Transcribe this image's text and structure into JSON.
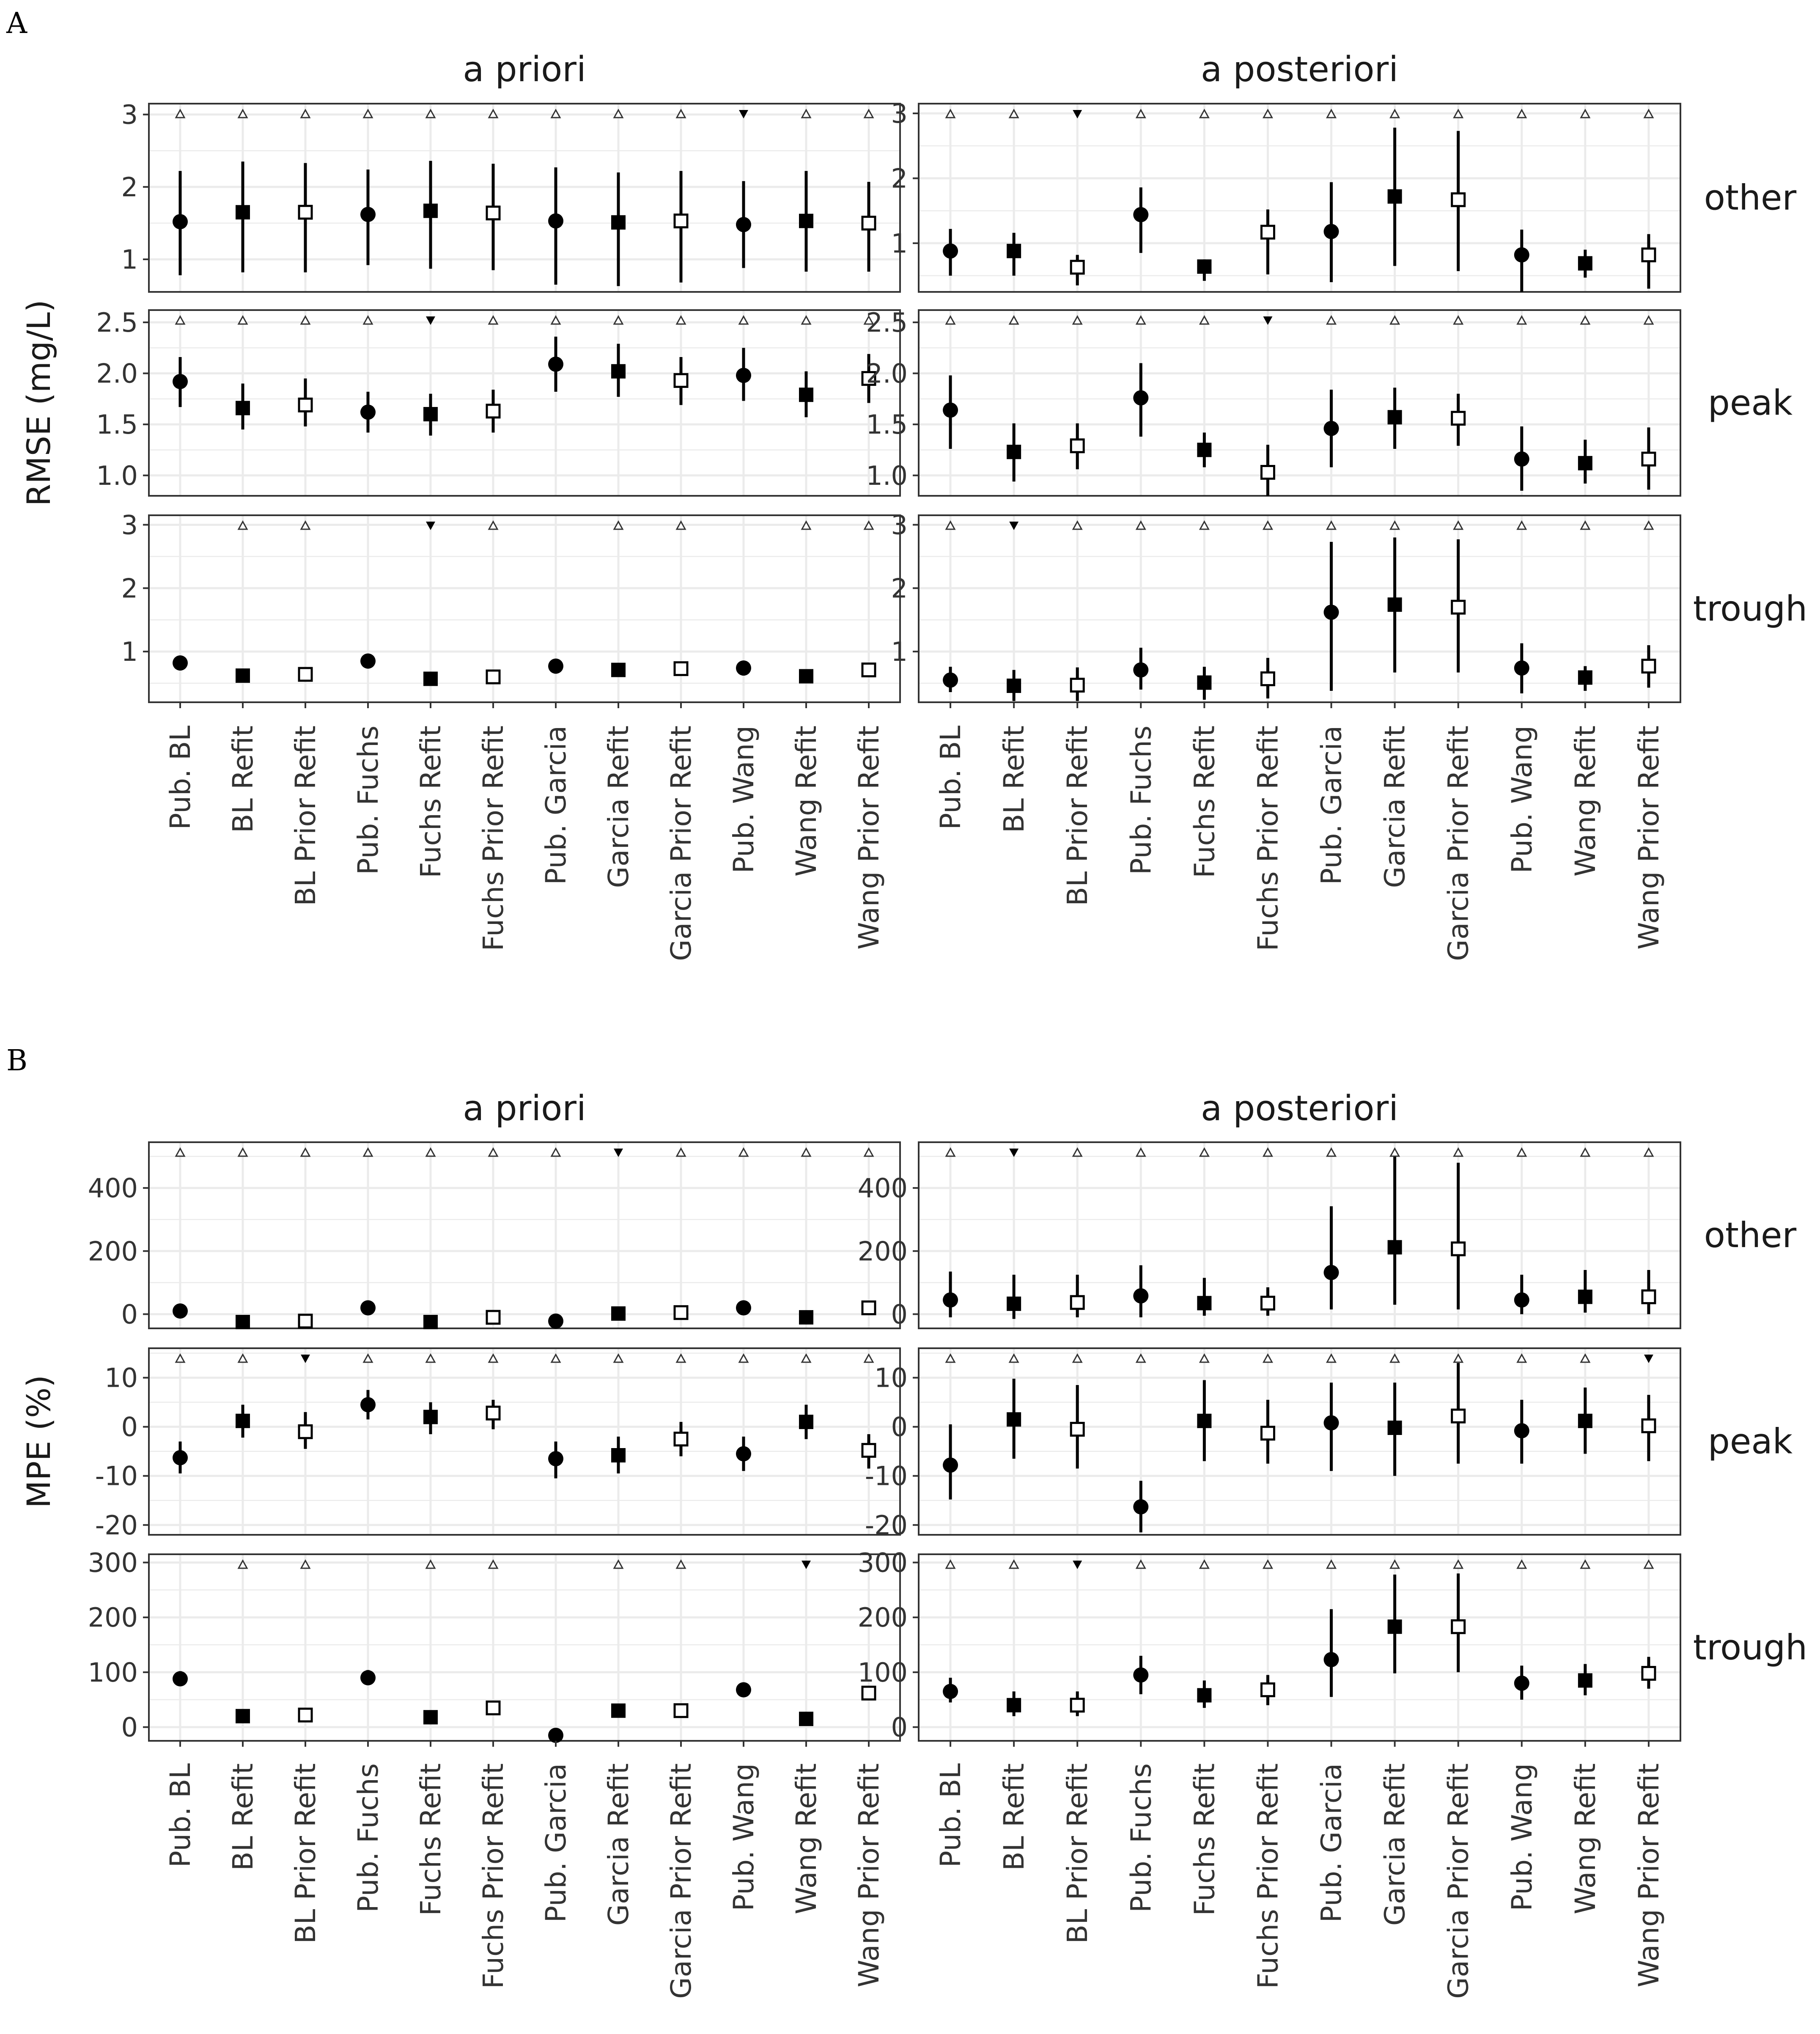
{
  "panel_labels": [
    "A",
    "B"
  ],
  "chart_data": [
    {
      "type": "scatter",
      "panel": "A",
      "ylabel": "RMSE (mg/L)",
      "columns": [
        "a priori",
        "a posteriori"
      ],
      "rows": [
        "other",
        "peak",
        "trough"
      ],
      "categories": [
        "Pub. BL",
        "BL Refit",
        "BL Prior Refit",
        "Pub. Fuchs",
        "Fuchs Refit",
        "Fuchs Prior Refit",
        "Pub. Garcia",
        "Garcia Refit",
        "Garcia Prior Refit",
        "Pub. Wang",
        "Wang Refit",
        "Wang Prior Refit"
      ],
      "marker_shapes": [
        "circle",
        "square",
        "open-square",
        "circle",
        "square",
        "open-square",
        "circle",
        "square",
        "open-square",
        "circle",
        "square",
        "open-square"
      ],
      "facets": [
        {
          "row": "other",
          "column": "a priori",
          "ylim": [
            0.55,
            3.15
          ],
          "yticks": [
            1,
            2,
            3
          ],
          "values": [
            1.52,
            1.65,
            1.65,
            1.62,
            1.67,
            1.64,
            1.53,
            1.51,
            1.53,
            1.48,
            1.53,
            1.5
          ],
          "lower": [
            0.78,
            0.82,
            0.82,
            0.92,
            0.87,
            0.85,
            0.65,
            0.63,
            0.68,
            0.88,
            0.83,
            0.83
          ],
          "upper": [
            2.22,
            2.35,
            2.33,
            2.24,
            2.36,
            2.32,
            2.27,
            2.2,
            2.22,
            2.08,
            2.22,
            2.07
          ],
          "indicators": [
            "open",
            "open",
            "open",
            "open",
            "open",
            "open",
            "open",
            "open",
            "open",
            "filled",
            "open",
            "open"
          ]
        },
        {
          "row": "other",
          "column": "a posteriori",
          "ylim": [
            0.25,
            3.15
          ],
          "yticks": [
            1,
            2,
            3
          ],
          "values": [
            0.88,
            0.88,
            0.63,
            1.44,
            0.64,
            1.17,
            1.18,
            1.72,
            1.67,
            0.82,
            0.69,
            0.82
          ],
          "lower": [
            0.5,
            0.5,
            0.35,
            0.85,
            0.42,
            0.52,
            0.4,
            0.65,
            0.57,
            0.25,
            0.47,
            0.3
          ],
          "upper": [
            1.22,
            1.16,
            0.82,
            1.86,
            0.75,
            1.52,
            1.94,
            2.78,
            2.73,
            1.21,
            0.9,
            1.14
          ],
          "indicators": [
            "open",
            "open",
            "filled",
            "open",
            "open",
            "open",
            "open",
            "open",
            "open",
            "open",
            "open",
            "open"
          ]
        },
        {
          "row": "peak",
          "column": "a priori",
          "ylim": [
            0.8,
            2.62
          ],
          "yticks": [
            1.0,
            1.5,
            2.0,
            2.5
          ],
          "ytick_labels": [
            "1.0",
            "1.5",
            "2.0",
            "2.5"
          ],
          "values": [
            1.92,
            1.66,
            1.69,
            1.62,
            1.6,
            1.63,
            2.09,
            2.02,
            1.93,
            1.98,
            1.79,
            1.95
          ],
          "lower": [
            1.67,
            1.45,
            1.48,
            1.42,
            1.39,
            1.42,
            1.82,
            1.77,
            1.69,
            1.73,
            1.57,
            1.71
          ],
          "upper": [
            2.16,
            1.9,
            1.95,
            1.82,
            1.8,
            1.84,
            2.36,
            2.29,
            2.16,
            2.25,
            2.02,
            2.19
          ],
          "indicators": [
            "open",
            "open",
            "open",
            "open",
            "filled",
            "open",
            "open",
            "open",
            "open",
            "open",
            "open",
            "open"
          ]
        },
        {
          "row": "peak",
          "column": "a posteriori",
          "ylim": [
            0.8,
            2.62
          ],
          "yticks": [
            1.0,
            1.5,
            2.0,
            2.5
          ],
          "ytick_labels": [
            "1.0",
            "1.5",
            "2.0",
            "2.5"
          ],
          "values": [
            1.64,
            1.23,
            1.29,
            1.76,
            1.25,
            1.03,
            1.46,
            1.57,
            1.56,
            1.16,
            1.12,
            1.16
          ],
          "lower": [
            1.26,
            0.94,
            1.06,
            1.38,
            1.08,
            0.8,
            1.08,
            1.26,
            1.29,
            0.85,
            0.92,
            0.86
          ],
          "upper": [
            1.98,
            1.51,
            1.51,
            2.1,
            1.42,
            1.3,
            1.84,
            1.86,
            1.8,
            1.48,
            1.35,
            1.47
          ],
          "indicators": [
            "open",
            "open",
            "open",
            "open",
            "open",
            "filled",
            "open",
            "open",
            "open",
            "open",
            "open",
            "open"
          ]
        },
        {
          "row": "trough",
          "column": "a priori",
          "ylim": [
            0.2,
            3.15
          ],
          "yticks": [
            1,
            2,
            3
          ],
          "values": [
            0.82,
            0.62,
            0.64,
            0.85,
            0.57,
            0.6,
            0.77,
            0.71,
            0.73,
            0.74,
            0.61,
            0.71
          ],
          "lower": [
            0.76,
            0.57,
            0.58,
            0.79,
            0.52,
            0.55,
            0.72,
            0.66,
            0.66,
            0.69,
            0.56,
            0.65
          ],
          "upper": [
            0.89,
            0.68,
            0.71,
            0.92,
            0.63,
            0.66,
            0.83,
            0.77,
            0.8,
            0.8,
            0.67,
            0.78
          ],
          "indicators": [
            "none",
            "open",
            "open",
            "none",
            "filled",
            "open",
            "none",
            "open",
            "open",
            "none",
            "open",
            "open"
          ]
        },
        {
          "row": "trough",
          "column": "a posteriori",
          "ylim": [
            0.2,
            3.15
          ],
          "yticks": [
            1,
            2,
            3
          ],
          "values": [
            0.55,
            0.46,
            0.47,
            0.71,
            0.51,
            0.57,
            1.62,
            1.74,
            1.7,
            0.74,
            0.59,
            0.77
          ],
          "lower": [
            0.36,
            0.22,
            0.22,
            0.4,
            0.24,
            0.26,
            0.38,
            0.67,
            0.67,
            0.34,
            0.38,
            0.43
          ],
          "upper": [
            0.76,
            0.71,
            0.75,
            1.06,
            0.76,
            0.9,
            2.73,
            2.8,
            2.77,
            1.13,
            0.77,
            1.1
          ],
          "indicators": [
            "open",
            "filled",
            "open",
            "open",
            "open",
            "open",
            "open",
            "open",
            "open",
            "open",
            "open",
            "open"
          ]
        }
      ]
    },
    {
      "type": "scatter",
      "panel": "B",
      "ylabel": "MPE (%)",
      "columns": [
        "a priori",
        "a posteriori"
      ],
      "rows": [
        "other",
        "peak",
        "trough"
      ],
      "categories": [
        "Pub. BL",
        "BL Refit",
        "BL Prior Refit",
        "Pub. Fuchs",
        "Fuchs Refit",
        "Fuchs Prior Refit",
        "Pub. Garcia",
        "Garcia Refit",
        "Garcia Prior Refit",
        "Pub. Wang",
        "Wang Refit",
        "Wang Prior Refit"
      ],
      "marker_shapes": [
        "circle",
        "square",
        "open-square",
        "circle",
        "square",
        "open-square",
        "circle",
        "square",
        "open-square",
        "circle",
        "square",
        "open-square"
      ],
      "facets": [
        {
          "row": "other",
          "column": "a priori",
          "ylim": [
            -45,
            545
          ],
          "yticks": [
            0,
            200,
            400
          ],
          "values": [
            10,
            -25,
            -22,
            20,
            -25,
            -10,
            -22,
            2,
            5,
            20,
            -10,
            20
          ],
          "lower": [
            -10,
            -30,
            -28,
            0,
            -30,
            -22,
            -28,
            -5,
            -5,
            0,
            -18,
            0
          ],
          "upper": [
            32,
            -20,
            -15,
            42,
            -20,
            0,
            -16,
            10,
            15,
            40,
            0,
            42
          ],
          "indicators": [
            "open",
            "open",
            "open",
            "open",
            "open",
            "open",
            "open",
            "filled",
            "open",
            "open",
            "open",
            "open"
          ]
        },
        {
          "row": "other",
          "column": "a posteriori",
          "ylim": [
            -45,
            545
          ],
          "yticks": [
            0,
            200,
            400
          ],
          "values": [
            45,
            33,
            37,
            58,
            35,
            35,
            132,
            212,
            207,
            45,
            55,
            55
          ],
          "lower": [
            -10,
            -15,
            -10,
            -10,
            -5,
            -5,
            15,
            30,
            15,
            0,
            5,
            0
          ],
          "upper": [
            135,
            125,
            125,
            155,
            115,
            85,
            342,
            500,
            480,
            125,
            140,
            140
          ],
          "indicators": [
            "open",
            "filled",
            "open",
            "open",
            "open",
            "open",
            "open",
            "open",
            "open",
            "open",
            "open",
            "open"
          ]
        },
        {
          "row": "peak",
          "column": "a priori",
          "ylim": [
            -22,
            16
          ],
          "yticks": [
            -20,
            -10,
            0,
            10
          ],
          "values": [
            -6.3,
            1.2,
            -1.0,
            4.5,
            2.0,
            2.8,
            -6.5,
            -5.8,
            -2.5,
            -5.5,
            1.0,
            -4.8
          ],
          "lower": [
            -9.5,
            -2.2,
            -4.5,
            1.5,
            -1.5,
            -0.5,
            -10.5,
            -9.5,
            -6.0,
            -9.0,
            -2.5,
            -8.5
          ],
          "upper": [
            -3.0,
            4.5,
            3.0,
            7.5,
            5.0,
            5.5,
            -3.0,
            -2.0,
            1.0,
            -2.0,
            4.5,
            -1.5
          ],
          "indicators": [
            "open",
            "open",
            "filled",
            "open",
            "open",
            "open",
            "open",
            "open",
            "open",
            "open",
            "open",
            "open"
          ]
        },
        {
          "row": "peak",
          "column": "a posteriori",
          "ylim": [
            -22,
            16
          ],
          "yticks": [
            -20,
            -10,
            0,
            10
          ],
          "values": [
            -7.8,
            1.5,
            -0.5,
            -16.3,
            1.2,
            -1.3,
            0.8,
            -0.2,
            2.2,
            -0.8,
            1.2,
            0.2
          ],
          "lower": [
            -14.8,
            -6.5,
            -8.5,
            -21.5,
            -7.0,
            -7.5,
            -9.0,
            -10.0,
            -7.5,
            -7.5,
            -5.5,
            -7.0
          ],
          "upper": [
            0.5,
            9.8,
            8.5,
            -11.0,
            9.5,
            5.5,
            9.0,
            9.0,
            13.0,
            5.5,
            8.0,
            6.5
          ],
          "indicators": [
            "open",
            "open",
            "open",
            "open",
            "open",
            "open",
            "open",
            "open",
            "open",
            "open",
            "open",
            "filled"
          ]
        },
        {
          "row": "trough",
          "column": "a priori",
          "ylim": [
            -25,
            315
          ],
          "yticks": [
            0,
            100,
            200,
            300
          ],
          "values": [
            88,
            20,
            22,
            90,
            18,
            35,
            -15,
            30,
            30,
            68,
            15,
            62
          ],
          "lower": [
            75,
            14,
            15,
            78,
            12,
            28,
            -20,
            24,
            22,
            62,
            10,
            55
          ],
          "upper": [
            102,
            26,
            30,
            104,
            24,
            42,
            -10,
            36,
            38,
            74,
            20,
            70
          ],
          "indicators": [
            "none",
            "open",
            "open",
            "none",
            "open",
            "open",
            "none",
            "open",
            "open",
            "none",
            "filled",
            "none"
          ]
        },
        {
          "row": "trough",
          "column": "a posteriori",
          "ylim": [
            -25,
            315
          ],
          "yticks": [
            0,
            100,
            200,
            300
          ],
          "values": [
            65,
            40,
            40,
            95,
            58,
            68,
            123,
            183,
            183,
            80,
            85,
            98
          ],
          "lower": [
            45,
            20,
            20,
            60,
            35,
            40,
            55,
            98,
            100,
            50,
            58,
            70
          ],
          "upper": [
            90,
            65,
            65,
            130,
            85,
            95,
            215,
            278,
            280,
            112,
            115,
            128
          ],
          "indicators": [
            "open",
            "open",
            "filled",
            "open",
            "open",
            "open",
            "open",
            "open",
            "open",
            "open",
            "open",
            "open"
          ]
        }
      ]
    }
  ]
}
